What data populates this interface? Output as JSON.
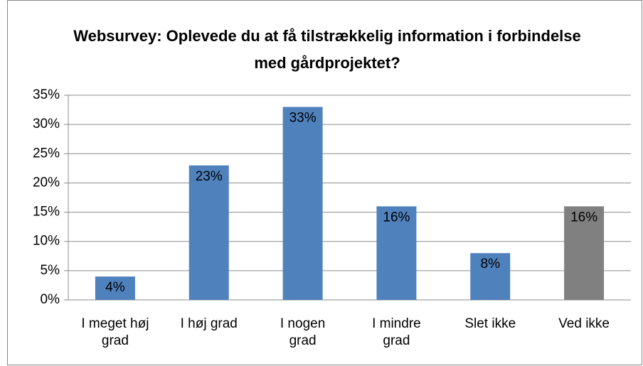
{
  "chart_data": {
    "type": "bar",
    "title": "Websurvey: Oplevede du at få tilstrækkelig information i forbindelse med gårdprojektet?",
    "categories": [
      "I meget høj grad",
      "I høj grad",
      "I nogen grad",
      "I mindre grad",
      "Slet ikke",
      "Ved ikke"
    ],
    "values": [
      4,
      23,
      33,
      16,
      8,
      16
    ],
    "value_labels": [
      "4%",
      "23%",
      "33%",
      "16%",
      "8%",
      "16%"
    ],
    "colors": [
      "#4f81bd",
      "#4f81bd",
      "#4f81bd",
      "#4f81bd",
      "#4f81bd",
      "#808080"
    ],
    "ylim": [
      0,
      35
    ],
    "yticks": [
      {
        "value": 0,
        "label": "0%"
      },
      {
        "value": 5,
        "label": "5%"
      },
      {
        "value": 10,
        "label": "10%"
      },
      {
        "value": 15,
        "label": "15%"
      },
      {
        "value": 20,
        "label": "20%"
      },
      {
        "value": 25,
        "label": "25%"
      },
      {
        "value": 30,
        "label": "30%"
      },
      {
        "value": 35,
        "label": "35%"
      }
    ],
    "grid": true
  }
}
